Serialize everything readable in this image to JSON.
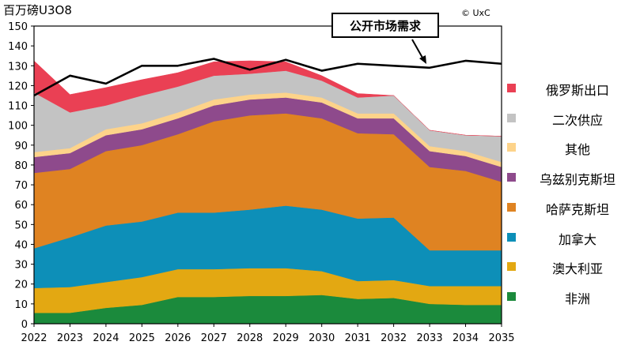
{
  "unit_label": "百万磅U3O8",
  "copyright": "© UxC",
  "chart_data": {
    "type": "area",
    "title": "",
    "xlabel": "",
    "ylabel": "百万磅U3O8",
    "x": [
      "2022",
      "2023",
      "2024",
      "2025",
      "2026",
      "2027",
      "2028",
      "2029",
      "2030",
      "2031",
      "2032",
      "2033",
      "2034",
      "2035"
    ],
    "ylim": [
      0,
      150
    ],
    "yticks": [
      0,
      10,
      20,
      30,
      40,
      50,
      60,
      70,
      80,
      90,
      100,
      110,
      120,
      130,
      140,
      150
    ],
    "stacked": true,
    "grid": false,
    "legend_position": "right",
    "series": [
      {
        "name": "非洲",
        "color": "#1b8a3c",
        "values": [
          5.5,
          5.5,
          8,
          9.5,
          13.5,
          13.5,
          14,
          14,
          14.5,
          12.5,
          13,
          10,
          9.5,
          9.5
        ]
      },
      {
        "name": "澳大利亚",
        "color": "#e3a812",
        "values": [
          12.5,
          13,
          13,
          14,
          14,
          14,
          14,
          14,
          12,
          9,
          9,
          9,
          9.5,
          9.5
        ]
      },
      {
        "name": "加拿大",
        "color": "#0d8fb8",
        "values": [
          20,
          25,
          28.5,
          28,
          28.5,
          28.5,
          29.5,
          31.5,
          31,
          31.5,
          31.5,
          18,
          18,
          18
        ]
      },
      {
        "name": "哈萨克斯坦",
        "color": "#df8322",
        "values": [
          38,
          34.5,
          37.5,
          38.5,
          39.5,
          46,
          47.5,
          46.5,
          46,
          43,
          42,
          42,
          40,
          34.5
        ]
      },
      {
        "name": "乌兹别克斯坦",
        "color": "#8e4a8c",
        "values": [
          8,
          8,
          8,
          8,
          8,
          8,
          8,
          8,
          8,
          7.5,
          8,
          8,
          7.5,
          7.5
        ]
      },
      {
        "name": "其他",
        "color": "#fdd38a",
        "values": [
          2.5,
          2.5,
          3,
          3,
          3,
          3,
          2.5,
          2.5,
          2.5,
          2.5,
          2.5,
          2.5,
          2.5,
          2.5
        ]
      },
      {
        "name": "二次供应",
        "color": "#c3c3c3",
        "values": [
          30,
          18,
          12,
          14,
          13,
          12,
          10.5,
          11,
          8.5,
          8,
          9,
          8,
          8,
          13
        ]
      },
      {
        "name": "俄罗斯出口",
        "color": "#ea4054",
        "values": [
          16,
          9,
          9,
          8,
          7,
          7,
          6.5,
          4.5,
          2.5,
          2,
          0,
          0,
          0,
          0
        ]
      }
    ],
    "demand": {
      "name": "公开市场需求",
      "color": "#000000",
      "values": [
        115,
        125,
        121,
        130,
        130,
        133.5,
        128,
        133,
        127.5,
        131,
        130,
        129,
        132.5,
        131
      ]
    },
    "legend_order": [
      "俄罗斯出口",
      "二次供应",
      "其他",
      "乌兹别克斯坦",
      "哈萨克斯坦",
      "加拿大",
      "澳大利亚",
      "非洲"
    ]
  }
}
